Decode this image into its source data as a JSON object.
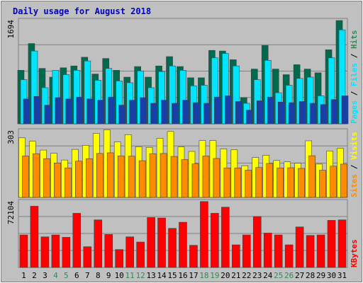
{
  "chart_data": {
    "type": "bar",
    "title": "Daily usage for August 2018",
    "categories": [
      "1",
      "2",
      "3",
      "4",
      "5",
      "6",
      "7",
      "8",
      "9",
      "10",
      "11",
      "12",
      "13",
      "14",
      "15",
      "16",
      "17",
      "18",
      "19",
      "20",
      "21",
      "22",
      "23",
      "24",
      "25",
      "26",
      "27",
      "28",
      "29",
      "30",
      "31"
    ],
    "weekend_days": [
      "4",
      "5",
      "11",
      "12",
      "18",
      "19",
      "25",
      "26"
    ],
    "panels": [
      {
        "name": "hits-files-pages",
        "y_tick_label": "1694",
        "ylim": [
          0,
          1694
        ],
        "right_label": [
          "Pages",
          "Files",
          "Hits"
        ],
        "series": [
          {
            "name": "Hits",
            "values": [
              860,
              1290,
              890,
              750,
              900,
              930,
              1070,
              800,
              1050,
              860,
              750,
              920,
              750,
              930,
              1080,
              920,
              740,
              740,
              1180,
              1170,
              1030,
              420,
              880,
              1260,
              880,
              790,
              950,
              880,
              820,
              1190,
              1660
            ]
          },
          {
            "name": "Files",
            "values": [
              710,
              1170,
              580,
              860,
              790,
              860,
              1010,
              700,
              890,
              690,
              660,
              850,
              580,
              840,
              930,
              860,
              610,
              620,
              1060,
              1130,
              930,
              330,
              710,
              1020,
              500,
              620,
              730,
              750,
              450,
              1060,
              1510
            ]
          },
          {
            "name": "Pages",
            "values": [
              400,
              440,
              300,
              420,
              400,
              430,
              400,
              380,
              430,
              300,
              380,
              420,
              330,
              380,
              330,
              380,
              340,
              330,
              430,
              450,
              360,
              220,
              370,
              430,
              350,
              340,
              360,
              330,
              310,
              390,
              450
            ]
          }
        ]
      },
      {
        "name": "visits-sites",
        "y_tick_label": "303",
        "ylim": [
          0,
          303
        ],
        "right_label": [
          "Sites",
          "Visits"
        ],
        "series": [
          {
            "name": "Visits",
            "values": [
              263,
              248,
              209,
              195,
              165,
              212,
              230,
              283,
              299,
              245,
              277,
              224,
              221,
              261,
              291,
              223,
              203,
              251,
              251,
              214,
              210,
              140,
              176,
              186,
              163,
              157,
              151,
              250,
              147,
              205,
              217
            ]
          },
          {
            "name": "Sites",
            "values": [
              183,
              193,
              171,
              152,
              130,
              160,
              171,
              194,
              197,
              183,
              182,
              162,
              193,
              194,
              181,
              167,
              148,
              183,
              172,
              130,
              130,
              120,
              132,
              150,
              130,
              131,
              128,
              184,
              120,
              138,
              147
            ]
          }
        ]
      },
      {
        "name": "kbytes",
        "y_tick_label": "72104",
        "ylim": [
          0,
          72104
        ],
        "right_label": [
          "KBytes"
        ],
        "series": [
          {
            "name": "KBytes",
            "values": [
              34500,
              65000,
              32500,
              34500,
              32000,
              57500,
              22000,
              50500,
              35000,
              19000,
              32500,
              27000,
              53000,
              52500,
              41500,
              48000,
              23500,
              70000,
              57500,
              64000,
              24000,
              34500,
              54000,
              36500,
              34500,
              24000,
              43000,
              34000,
              34500,
              50000,
              50500
            ]
          }
        ]
      }
    ],
    "colors": {
      "background": "#c0c0c0",
      "grid": "#808080",
      "title": "#0000cc",
      "weekend_label": "#2e8b57",
      "hits": "#006a4e",
      "files": "#00e5ff",
      "pages": "#1a3ea8",
      "visits": "#ffff00",
      "sites": "#ff8c00",
      "kbytes": "#ff0000",
      "label_slash": "#000000"
    }
  }
}
